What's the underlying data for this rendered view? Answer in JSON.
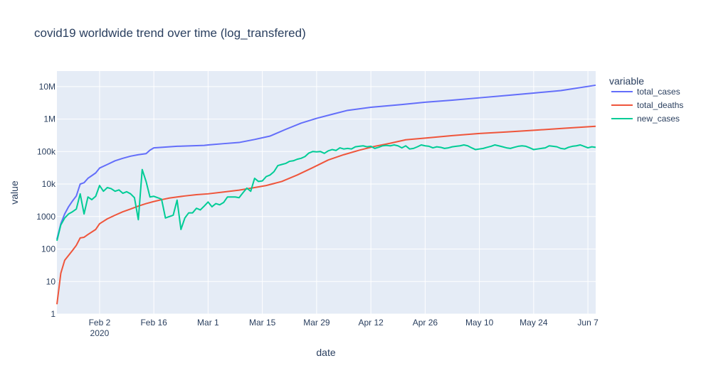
{
  "chart_data": {
    "type": "line",
    "title": "covid19 worldwide trend over time (log_transfered)",
    "xlabel": "date",
    "ylabel": "value",
    "y_scale": "log",
    "x_range": [
      "2020-01-22",
      "2020-06-09"
    ],
    "ylim": [
      1,
      30000000
    ],
    "x_ticks": [
      {
        "date": "2020-02-02",
        "label": "Feb 2",
        "sublabel": "2020"
      },
      {
        "date": "2020-02-16",
        "label": "Feb 16",
        "sublabel": ""
      },
      {
        "date": "2020-03-01",
        "label": "Mar 1",
        "sublabel": ""
      },
      {
        "date": "2020-03-15",
        "label": "Mar 15",
        "sublabel": ""
      },
      {
        "date": "2020-03-29",
        "label": "Mar 29",
        "sublabel": ""
      },
      {
        "date": "2020-04-12",
        "label": "Apr 12",
        "sublabel": ""
      },
      {
        "date": "2020-04-26",
        "label": "Apr 26",
        "sublabel": ""
      },
      {
        "date": "2020-05-10",
        "label": "May 10",
        "sublabel": ""
      },
      {
        "date": "2020-05-24",
        "label": "May 24",
        "sublabel": ""
      },
      {
        "date": "2020-06-07",
        "label": "Jun 7",
        "sublabel": ""
      }
    ],
    "y_ticks": [
      {
        "value": 1,
        "label": "1"
      },
      {
        "value": 10,
        "label": "10"
      },
      {
        "value": 100,
        "label": "100"
      },
      {
        "value": 1000,
        "label": "1000"
      },
      {
        "value": 10000,
        "label": "10k"
      },
      {
        "value": 100000,
        "label": "100k"
      },
      {
        "value": 1000000,
        "label": "1M"
      },
      {
        "value": 10000000,
        "label": "10M"
      }
    ],
    "legend": {
      "title": "variable",
      "position": "right"
    },
    "grid": true,
    "series": [
      {
        "name": "total_cases",
        "color": "#636efa",
        "points": [
          [
            "2020-01-22",
            200
          ],
          [
            "2020-01-23",
            600
          ],
          [
            "2020-01-24",
            1200
          ],
          [
            "2020-01-25",
            2000
          ],
          [
            "2020-01-26",
            3000
          ],
          [
            "2020-01-27",
            4300
          ],
          [
            "2020-01-28",
            10000
          ],
          [
            "2020-01-29",
            11000
          ],
          [
            "2020-01-30",
            15000
          ],
          [
            "2020-02-01",
            22000
          ],
          [
            "2020-02-02",
            31000
          ],
          [
            "2020-02-04",
            40000
          ],
          [
            "2020-02-06",
            52000
          ],
          [
            "2020-02-08",
            62000
          ],
          [
            "2020-02-10",
            72000
          ],
          [
            "2020-02-12",
            80000
          ],
          [
            "2020-02-14",
            86000
          ],
          [
            "2020-02-15",
            110000
          ],
          [
            "2020-02-16",
            130000
          ],
          [
            "2020-02-18",
            135000
          ],
          [
            "2020-02-22",
            145000
          ],
          [
            "2020-02-29",
            155000
          ],
          [
            "2020-03-01",
            160000
          ],
          [
            "2020-03-05",
            175000
          ],
          [
            "2020-03-09",
            190000
          ],
          [
            "2020-03-13",
            235000
          ],
          [
            "2020-03-17",
            300000
          ],
          [
            "2020-03-21",
            480000
          ],
          [
            "2020-03-25",
            750000
          ],
          [
            "2020-03-29",
            1050000
          ],
          [
            "2020-04-02",
            1400000
          ],
          [
            "2020-04-06",
            1850000
          ],
          [
            "2020-04-12",
            2300000
          ],
          [
            "2020-04-20",
            2800000
          ],
          [
            "2020-04-26",
            3300000
          ],
          [
            "2020-05-03",
            3800000
          ],
          [
            "2020-05-10",
            4500000
          ],
          [
            "2020-05-17",
            5300000
          ],
          [
            "2020-05-24",
            6300000
          ],
          [
            "2020-05-31",
            7500000
          ],
          [
            "2020-06-09",
            11000000
          ]
        ]
      },
      {
        "name": "total_deaths",
        "color": "#ef553b",
        "points": [
          [
            "2020-01-22",
            2
          ],
          [
            "2020-01-23",
            18
          ],
          [
            "2020-01-24",
            45
          ],
          [
            "2020-01-26",
            90
          ],
          [
            "2020-01-27",
            130
          ],
          [
            "2020-01-28",
            220
          ],
          [
            "2020-01-29",
            230
          ],
          [
            "2020-01-30",
            280
          ],
          [
            "2020-02-01",
            400
          ],
          [
            "2020-02-02",
            600
          ],
          [
            "2020-02-04",
            850
          ],
          [
            "2020-02-06",
            1100
          ],
          [
            "2020-02-08",
            1400
          ],
          [
            "2020-02-10",
            1700
          ],
          [
            "2020-02-12",
            2100
          ],
          [
            "2020-02-14",
            2500
          ],
          [
            "2020-02-16",
            2900
          ],
          [
            "2020-02-18",
            3300
          ],
          [
            "2020-02-20",
            3700
          ],
          [
            "2020-02-22",
            4000
          ],
          [
            "2020-02-24",
            4300
          ],
          [
            "2020-02-27",
            4700
          ],
          [
            "2020-03-01",
            5000
          ],
          [
            "2020-03-05",
            5700
          ],
          [
            "2020-03-09",
            6500
          ],
          [
            "2020-03-13",
            7800
          ],
          [
            "2020-03-16",
            9000
          ],
          [
            "2020-03-20",
            12000
          ],
          [
            "2020-03-24",
            19000
          ],
          [
            "2020-03-28",
            32000
          ],
          [
            "2020-04-01",
            55000
          ],
          [
            "2020-04-05",
            80000
          ],
          [
            "2020-04-09",
            110000
          ],
          [
            "2020-04-13",
            145000
          ],
          [
            "2020-04-17",
            180000
          ],
          [
            "2020-04-21",
            230000
          ],
          [
            "2020-04-26",
            260000
          ],
          [
            "2020-05-03",
            310000
          ],
          [
            "2020-05-10",
            360000
          ],
          [
            "2020-05-17",
            400000
          ],
          [
            "2020-05-24",
            450000
          ],
          [
            "2020-06-01",
            520000
          ],
          [
            "2020-06-09",
            600000
          ]
        ]
      },
      {
        "name": "new_cases",
        "color": "#00cc96",
        "points": [
          [
            "2020-01-22",
            180
          ],
          [
            "2020-01-23",
            550
          ],
          [
            "2020-01-24",
            900
          ],
          [
            "2020-01-25",
            1200
          ],
          [
            "2020-01-26",
            1400
          ],
          [
            "2020-01-27",
            1700
          ],
          [
            "2020-01-28",
            5000
          ],
          [
            "2020-01-29",
            1200
          ],
          [
            "2020-01-30",
            4000
          ],
          [
            "2020-01-31",
            3300
          ],
          [
            "2020-02-01",
            4200
          ],
          [
            "2020-02-02",
            9000
          ],
          [
            "2020-02-03",
            6000
          ],
          [
            "2020-02-04",
            7800
          ],
          [
            "2020-02-05",
            7200
          ],
          [
            "2020-02-06",
            6000
          ],
          [
            "2020-02-07",
            6600
          ],
          [
            "2020-02-08",
            5200
          ],
          [
            "2020-02-09",
            5800
          ],
          [
            "2020-02-10",
            5000
          ],
          [
            "2020-02-11",
            3800
          ],
          [
            "2020-02-12",
            800
          ],
          [
            "2020-02-13",
            28000
          ],
          [
            "2020-02-14",
            12000
          ],
          [
            "2020-02-15",
            4000
          ],
          [
            "2020-02-16",
            4200
          ],
          [
            "2020-02-17",
            3800
          ],
          [
            "2020-02-18",
            3400
          ],
          [
            "2020-02-19",
            900
          ],
          [
            "2020-02-20",
            1000
          ],
          [
            "2020-02-21",
            1100
          ],
          [
            "2020-02-22",
            3200
          ],
          [
            "2020-02-23",
            400
          ],
          [
            "2020-02-24",
            900
          ],
          [
            "2020-02-25",
            1300
          ],
          [
            "2020-02-26",
            1300
          ],
          [
            "2020-02-27",
            1800
          ],
          [
            "2020-02-28",
            1600
          ],
          [
            "2020-02-29",
            2100
          ],
          [
            "2020-03-01",
            2800
          ],
          [
            "2020-03-02",
            2000
          ],
          [
            "2020-03-03",
            2500
          ],
          [
            "2020-03-04",
            2300
          ],
          [
            "2020-03-05",
            2700
          ],
          [
            "2020-03-06",
            4000
          ],
          [
            "2020-03-08",
            4000
          ],
          [
            "2020-03-09",
            3800
          ],
          [
            "2020-03-10",
            5400
          ],
          [
            "2020-03-11",
            7500
          ],
          [
            "2020-03-12",
            6000
          ],
          [
            "2020-03-13",
            15000
          ],
          [
            "2020-03-14",
            12000
          ],
          [
            "2020-03-15",
            12500
          ],
          [
            "2020-03-16",
            17000
          ],
          [
            "2020-03-17",
            19000
          ],
          [
            "2020-03-18",
            24000
          ],
          [
            "2020-03-19",
            37000
          ],
          [
            "2020-03-20",
            40000
          ],
          [
            "2020-03-21",
            43000
          ],
          [
            "2020-03-22",
            50000
          ],
          [
            "2020-03-23",
            52000
          ],
          [
            "2020-03-24",
            58000
          ],
          [
            "2020-03-25",
            62000
          ],
          [
            "2020-03-26",
            70000
          ],
          [
            "2020-03-27",
            90000
          ],
          [
            "2020-03-28",
            100000
          ],
          [
            "2020-03-29",
            98000
          ],
          [
            "2020-03-30",
            100000
          ],
          [
            "2020-03-31",
            88000
          ],
          [
            "2020-04-01",
            105000
          ],
          [
            "2020-04-02",
            115000
          ],
          [
            "2020-04-03",
            108000
          ],
          [
            "2020-04-04",
            130000
          ],
          [
            "2020-04-05",
            120000
          ],
          [
            "2020-04-06",
            125000
          ],
          [
            "2020-04-07",
            120000
          ],
          [
            "2020-04-08",
            140000
          ],
          [
            "2020-04-09",
            145000
          ],
          [
            "2020-04-10",
            150000
          ],
          [
            "2020-04-11",
            140000
          ],
          [
            "2020-04-12",
            145000
          ],
          [
            "2020-04-13",
            125000
          ],
          [
            "2020-04-14",
            135000
          ],
          [
            "2020-04-15",
            150000
          ],
          [
            "2020-04-16",
            155000
          ],
          [
            "2020-04-17",
            150000
          ],
          [
            "2020-04-18",
            160000
          ],
          [
            "2020-04-19",
            150000
          ],
          [
            "2020-04-20",
            130000
          ],
          [
            "2020-04-21",
            150000
          ],
          [
            "2020-04-22",
            120000
          ],
          [
            "2020-04-23",
            125000
          ],
          [
            "2020-04-24",
            140000
          ],
          [
            "2020-04-25",
            160000
          ],
          [
            "2020-04-26",
            150000
          ],
          [
            "2020-04-27",
            145000
          ],
          [
            "2020-04-28",
            130000
          ],
          [
            "2020-04-29",
            140000
          ],
          [
            "2020-04-30",
            135000
          ],
          [
            "2020-05-01",
            125000
          ],
          [
            "2020-05-02",
            130000
          ],
          [
            "2020-05-03",
            140000
          ],
          [
            "2020-05-04",
            145000
          ],
          [
            "2020-05-05",
            150000
          ],
          [
            "2020-05-06",
            160000
          ],
          [
            "2020-05-07",
            150000
          ],
          [
            "2020-05-08",
            130000
          ],
          [
            "2020-05-09",
            115000
          ],
          [
            "2020-05-10",
            120000
          ],
          [
            "2020-05-11",
            125000
          ],
          [
            "2020-05-12",
            135000
          ],
          [
            "2020-05-13",
            145000
          ],
          [
            "2020-05-14",
            160000
          ],
          [
            "2020-05-15",
            150000
          ],
          [
            "2020-05-16",
            140000
          ],
          [
            "2020-05-17",
            130000
          ],
          [
            "2020-05-18",
            125000
          ],
          [
            "2020-05-19",
            135000
          ],
          [
            "2020-05-20",
            145000
          ],
          [
            "2020-05-21",
            150000
          ],
          [
            "2020-05-22",
            145000
          ],
          [
            "2020-05-23",
            130000
          ],
          [
            "2020-05-24",
            115000
          ],
          [
            "2020-05-25",
            120000
          ],
          [
            "2020-05-26",
            125000
          ],
          [
            "2020-05-27",
            130000
          ],
          [
            "2020-05-28",
            150000
          ],
          [
            "2020-05-29",
            145000
          ],
          [
            "2020-05-30",
            140000
          ],
          [
            "2020-05-31",
            125000
          ],
          [
            "2020-06-01",
            120000
          ],
          [
            "2020-06-02",
            135000
          ],
          [
            "2020-06-03",
            145000
          ],
          [
            "2020-06-04",
            150000
          ],
          [
            "2020-06-05",
            160000
          ],
          [
            "2020-06-06",
            145000
          ],
          [
            "2020-06-07",
            130000
          ],
          [
            "2020-06-08",
            140000
          ],
          [
            "2020-06-09",
            135000
          ]
        ]
      }
    ]
  }
}
